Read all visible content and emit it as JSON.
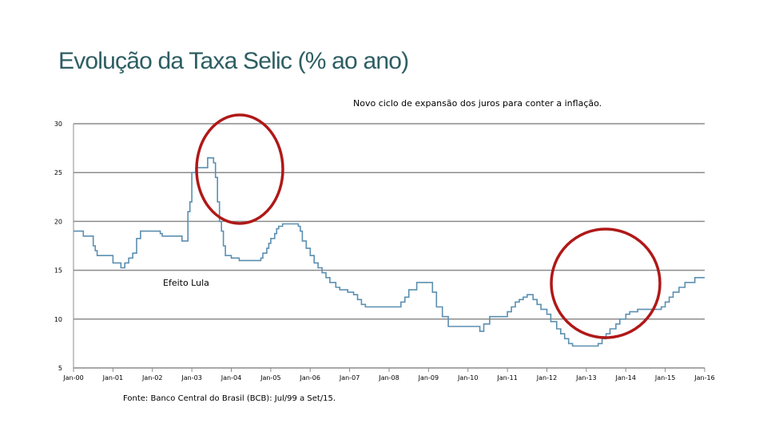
{
  "title": "Evolução da Taxa Selic (% ao ano)",
  "colors": {
    "title": "#2e5e63",
    "line": "#5b8fb0",
    "grid": "#8c8c8c",
    "circle": "#b01818"
  },
  "annotations": {
    "top": "Novo ciclo de expansão dos juros para conter a inflação.",
    "lula": "Efeito Lula",
    "source": "Fonte: Banco Central do Brasil (BCB): Jul/99 a Set/15."
  },
  "chart_data": {
    "type": "line",
    "title": "Evolução da Taxa Selic (% ao ano)",
    "xlabel": "",
    "ylabel": "",
    "ylim": [
      5,
      30
    ],
    "yticks": [
      5,
      10,
      15,
      20,
      25,
      30
    ],
    "xlim": [
      2000.0,
      2016.0
    ],
    "xticks": [
      {
        "value": 2000,
        "label": "Jan-00"
      },
      {
        "value": 2001,
        "label": "Jan-01"
      },
      {
        "value": 2002,
        "label": "Jan-02"
      },
      {
        "value": 2003,
        "label": "Jan-03"
      },
      {
        "value": 2004,
        "label": "Jan-04"
      },
      {
        "value": 2005,
        "label": "Jan-05"
      },
      {
        "value": 2006,
        "label": "Jan-06"
      },
      {
        "value": 2007,
        "label": "Jan-07"
      },
      {
        "value": 2008,
        "label": "Jan-08"
      },
      {
        "value": 2009,
        "label": "Jan-09"
      },
      {
        "value": 2010,
        "label": "Jan-10"
      },
      {
        "value": 2011,
        "label": "Jan-11"
      },
      {
        "value": 2012,
        "label": "Jan-12"
      },
      {
        "value": 2013,
        "label": "Jan-13"
      },
      {
        "value": 2014,
        "label": "Jan-14"
      },
      {
        "value": 2015,
        "label": "Jan-15"
      },
      {
        "value": 2016,
        "label": "Jan-16"
      }
    ],
    "grid": true,
    "series": [
      {
        "name": "Selic",
        "step": true,
        "x": [
          2000.0,
          2000.25,
          2000.5,
          2000.55,
          2000.6,
          2000.7,
          2001.0,
          2001.2,
          2001.3,
          2001.4,
          2001.5,
          2001.6,
          2001.7,
          2001.75,
          2002.0,
          2002.2,
          2002.25,
          2002.5,
          2002.75,
          2002.85,
          2002.9,
          2002.95,
          2003.0,
          2003.1,
          2003.4,
          2003.5,
          2003.55,
          2003.6,
          2003.65,
          2003.7,
          2003.75,
          2003.8,
          2003.85,
          2003.9,
          2003.95,
          2004.0,
          2004.2,
          2004.3,
          2004.5,
          2004.75,
          2004.8,
          2004.9,
          2004.95,
          2005.0,
          2005.1,
          2005.15,
          2005.2,
          2005.3,
          2005.4,
          2005.6,
          2005.7,
          2005.75,
          2005.8,
          2005.9,
          2006.0,
          2006.1,
          2006.2,
          2006.3,
          2006.4,
          2006.5,
          2006.65,
          2006.75,
          2006.85,
          2006.95,
          2007.1,
          2007.2,
          2007.3,
          2007.4,
          2007.5,
          2007.7,
          2008.3,
          2008.4,
          2008.5,
          2008.7,
          2009.0,
          2009.1,
          2009.2,
          2009.35,
          2009.5,
          2010.3,
          2010.4,
          2010.55,
          2011.0,
          2011.1,
          2011.2,
          2011.3,
          2011.4,
          2011.5,
          2011.65,
          2011.75,
          2011.85,
          2012.0,
          2012.1,
          2012.25,
          2012.35,
          2012.45,
          2012.55,
          2012.65,
          2012.75,
          2012.85,
          2013.3,
          2013.4,
          2013.5,
          2013.6,
          2013.75,
          2013.85,
          2014.0,
          2014.1,
          2014.3,
          2014.8,
          2014.9,
          2015.0,
          2015.1,
          2015.2,
          2015.35,
          2015.5,
          2015.75,
          2016.0
        ],
        "y": [
          19.0,
          18.5,
          17.5,
          17.0,
          16.5,
          16.5,
          15.75,
          15.25,
          15.75,
          16.25,
          16.75,
          18.25,
          19.0,
          19.0,
          19.0,
          18.75,
          18.5,
          18.5,
          18.0,
          18.0,
          21.0,
          22.0,
          25.0,
          25.5,
          26.5,
          26.5,
          26.0,
          24.5,
          22.0,
          20.0,
          19.0,
          17.5,
          16.5,
          16.5,
          16.5,
          16.25,
          16.0,
          16.0,
          16.0,
          16.25,
          16.75,
          17.25,
          17.75,
          18.25,
          18.75,
          19.25,
          19.5,
          19.75,
          19.75,
          19.75,
          19.5,
          19.0,
          18.0,
          17.25,
          16.5,
          15.75,
          15.25,
          14.75,
          14.25,
          13.75,
          13.25,
          13.0,
          13.0,
          12.75,
          12.5,
          12.0,
          11.5,
          11.25,
          11.25,
          11.25,
          11.75,
          12.25,
          13.0,
          13.75,
          13.75,
          12.75,
          11.25,
          10.25,
          9.25,
          8.75,
          9.5,
          10.25,
          10.75,
          11.25,
          11.75,
          12.0,
          12.25,
          12.5,
          12.0,
          11.5,
          11.0,
          10.5,
          9.75,
          9.0,
          8.5,
          8.0,
          7.5,
          7.25,
          7.25,
          7.25,
          7.5,
          8.0,
          8.5,
          9.0,
          9.5,
          10.0,
          10.5,
          10.75,
          11.0,
          11.0,
          11.25,
          11.75,
          12.25,
          12.75,
          13.25,
          13.75,
          14.25,
          14.25
        ]
      }
    ]
  }
}
